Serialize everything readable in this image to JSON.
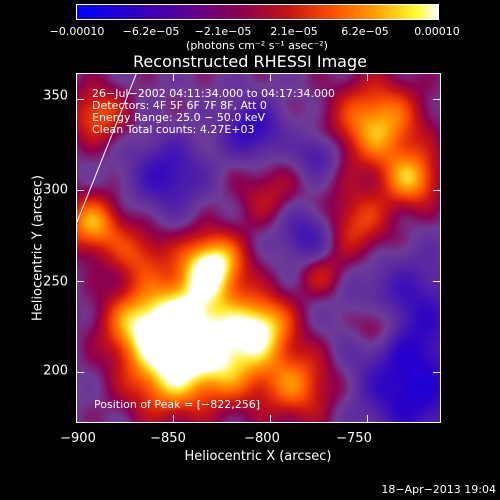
{
  "colorbar": {
    "ticks": [
      "−0.00010",
      "−6.2e−05",
      "−2.1e−05",
      "2.1e−05",
      "6.2e−05",
      "0.00010"
    ],
    "unit": "(photons cm⁻² s⁻¹ asec⁻²)"
  },
  "title": "Reconstructed RHESSI Image",
  "info": {
    "line1": "26−Jul−2002 04:11:34.000 to 04:17:34.000",
    "line2": "Detectors: 4F 5F 6F 7F 8F, Att 0",
    "line3": "Energy Range: 25.0 − 50.0 keV",
    "line4": "Clean     Total counts: 4.27E+03"
  },
  "peak": "Position of Peak = [−822,256]",
  "timestamp": "18−Apr−2013 19:04",
  "chart_data": {
    "type": "heatmap",
    "title": "Reconstructed RHESSI Image",
    "xlabel": "Heliocentric X (arcsec)",
    "ylabel": "Heliocentric Y (arcsec)",
    "xlim": [
      -900,
      -712
    ],
    "ylim": [
      172,
      364
    ],
    "x_ticks": [
      -900,
      -850,
      -800,
      -750
    ],
    "y_ticks": [
      200,
      250,
      300,
      350
    ],
    "x_tick_labels": [
      "−900",
      "−850",
      "−800",
      "−750"
    ],
    "y_tick_labels": [
      "200",
      "250",
      "300",
      "350"
    ],
    "color_range": [
      -0.0001,
      0.0001
    ],
    "peak_position": [
      -822,
      256
    ]
  }
}
